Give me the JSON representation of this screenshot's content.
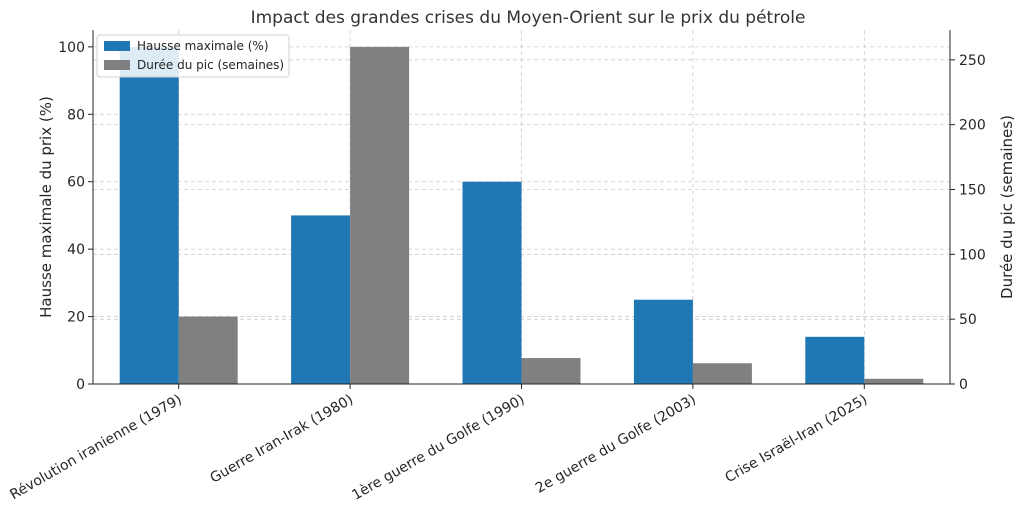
{
  "chart_data": {
    "type": "bar",
    "title": "Impact des grandes crises du Moyen-Orient sur le prix du pétrole",
    "categories": [
      "Révolution iranienne (1979)",
      "Guerre Iran-Irak (1980)",
      "1ère guerre du Golfe (1990)",
      "2e guerre du Golfe (2003)",
      "Crise Israël-Iran (2025)"
    ],
    "series": [
      {
        "name": "Hausse maximale (%)",
        "values": [
          100,
          50,
          60,
          25,
          14
        ],
        "color": "#1f77b4",
        "axis": "left"
      },
      {
        "name": "Durée du pic (semaines)",
        "values": [
          52,
          260,
          20,
          16,
          4
        ],
        "color": "#808080",
        "axis": "right"
      }
    ],
    "ylabel": "Hausse maximale du prix (%)",
    "ylabel_right": "Durée du pic (semaines)",
    "ylim": [
      0,
      105
    ],
    "ylim_right": [
      0,
      273
    ],
    "yticks": [
      0,
      20,
      40,
      60,
      80,
      100
    ],
    "yticks_right": [
      0,
      50,
      100,
      150,
      200,
      250
    ],
    "grid": true,
    "legend_position": "top-left"
  }
}
